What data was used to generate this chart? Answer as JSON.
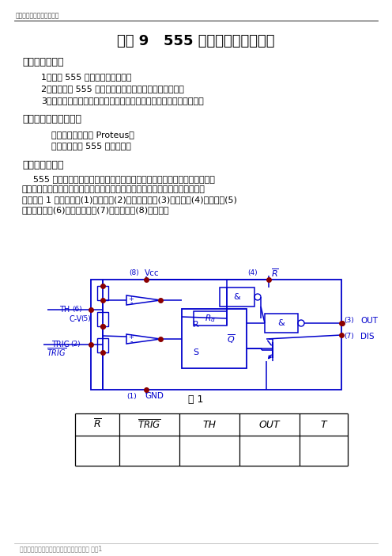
{
  "page_title": "精品好文档，推荐学习交流",
  "main_title": "实验 9   555 定时器应用电路设计",
  "section1_title": "一、实验目的：",
  "section1_items": [
    "1．了解 555 定时器的工作原理。",
    "2．学会分析 555 电路所构成的几种应用电路工作原理。",
    "3．熟悉掌握ＥＤＡ软件工具Ｍｕｌｔｉｓｉｍ的设计仿真测试应用。"
  ],
  "section2_title": "二、实验设备及材料：",
  "section2_items": [
    "仿真计算机及软件 Proteus。",
    "附：集成电路 555 管脚排列图"
  ],
  "section3_title": "三、实验原理：",
  "section3_lines": [
    "    555 电路是一种常见的集模拟与数字功能于一体的集成电路，只要适当配接",
    "少量的元件，即可构成时基振荡、单稳触发等脉冲产生和变换的电路，其内部原",
    "理图如图 1 所示，其中(1)脚接地，(2)脚触发输入，(3)脚输出，(4)脚复位，(5)",
    "脚控制电压，(6)脚阈值输入，(7)脚放电端，(8)脚电源。"
  ],
  "fig_caption": "图 1",
  "table_headers": [
    "R",
    "TRIG",
    "TH",
    "OUT",
    "T"
  ],
  "footer_text": "仅供学习与交流，如有侵权请联系网站删除 谢谢1",
  "title_color": "#000000",
  "circuit_color": "#0000CC",
  "dot_color": "#8B0000",
  "text_color": "#000000",
  "bg_color": "#ffffff"
}
